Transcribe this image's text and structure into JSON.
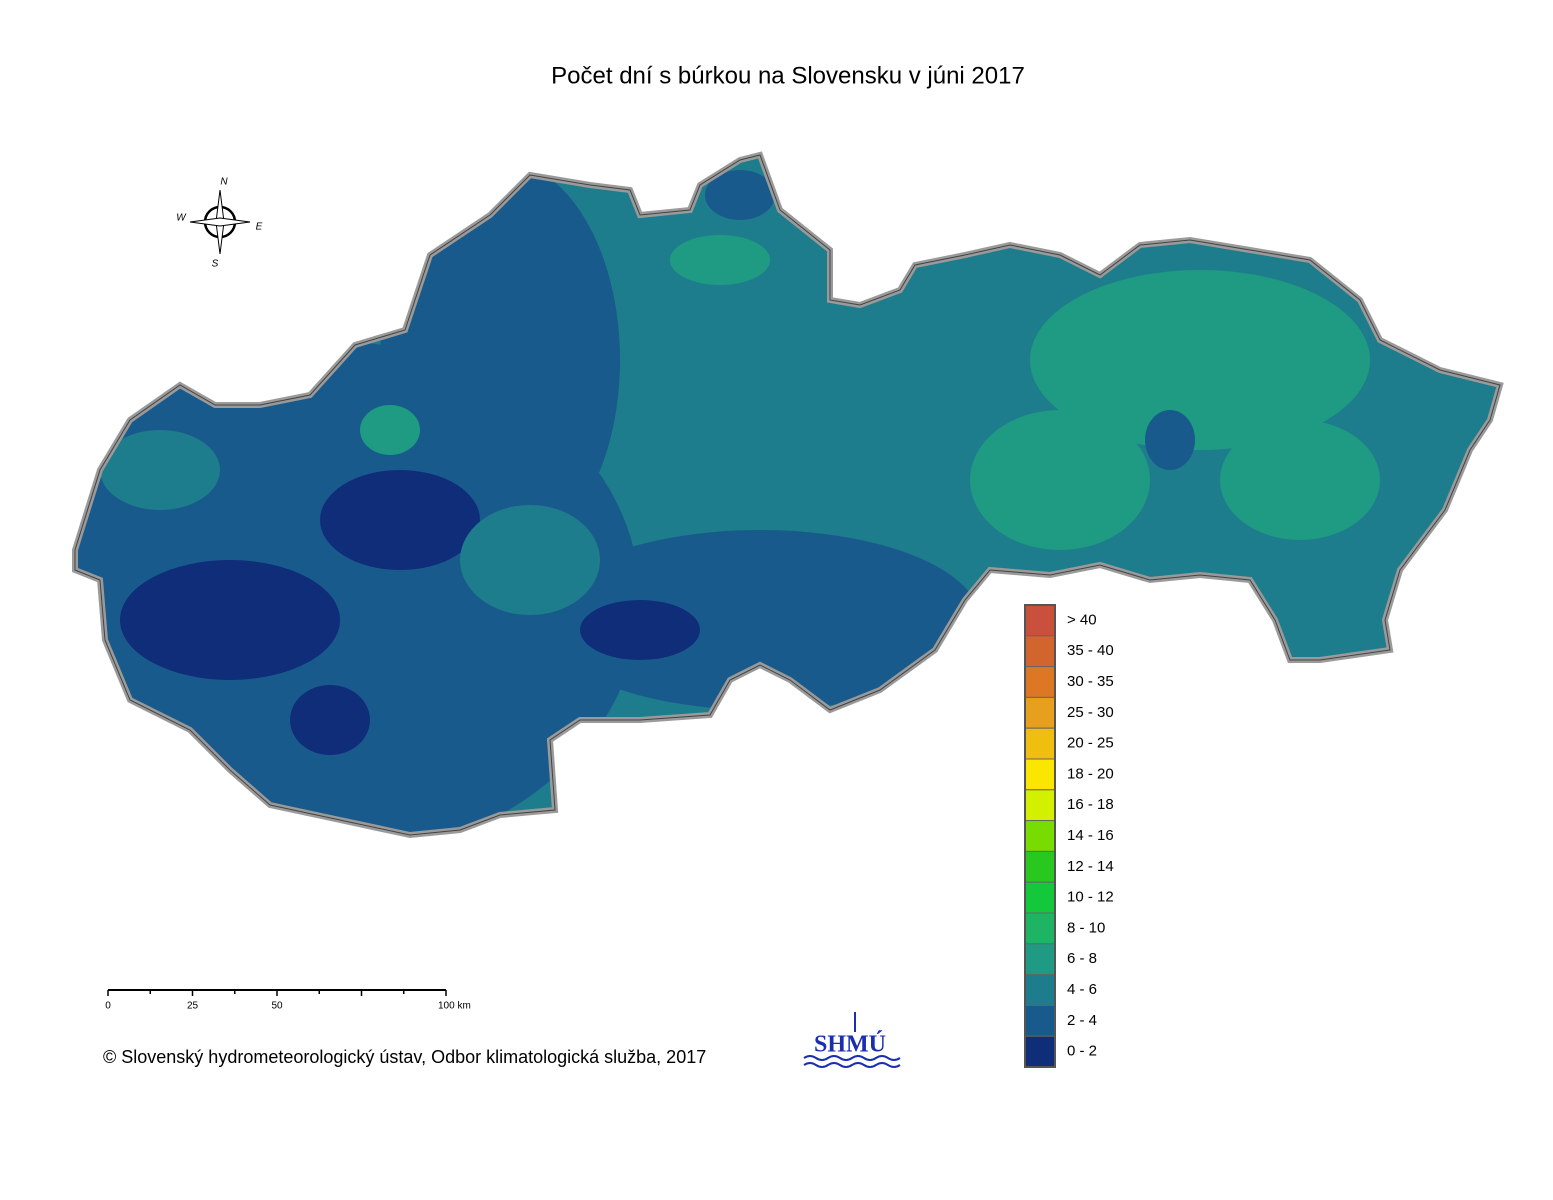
{
  "title": "Počet dní s búrkou na Slovensku v júni 2017",
  "compass": {
    "north": "N",
    "west": "W",
    "east": "E",
    "south": "S"
  },
  "scale_bar": {
    "labels": [
      "0",
      "25",
      "50",
      "100 km"
    ]
  },
  "legend": {
    "items": [
      {
        "label": "> 40",
        "color": "#c8503c"
      },
      {
        "label": "35 - 40",
        "color": "#d2642d"
      },
      {
        "label": "30 - 35",
        "color": "#dc7823"
      },
      {
        "label": "25 - 30",
        "color": "#e6a01e"
      },
      {
        "label": "20 - 25",
        "color": "#f0be0f"
      },
      {
        "label": "18 - 20",
        "color": "#fae600"
      },
      {
        "label": "16 - 18",
        "color": "#d2f000"
      },
      {
        "label": "14 - 16",
        "color": "#78dc00"
      },
      {
        "label": "12 - 14",
        "color": "#28c81e"
      },
      {
        "label": "10 - 12",
        "color": "#14c83c"
      },
      {
        "label": "8 - 10",
        "color": "#1eb464"
      },
      {
        "label": "6 - 8",
        "color": "#1e9b82"
      },
      {
        "label": "4 - 6",
        "color": "#1e7d8c"
      },
      {
        "label": "2 - 4",
        "color": "#195a8c"
      },
      {
        "label": "0 - 2",
        "color": "#0f2d78"
      }
    ]
  },
  "copyright": "© Slovenský hydrometeorologický ústav, Odbor klimatologická služba, 2017",
  "logo": "SHMÚ"
}
